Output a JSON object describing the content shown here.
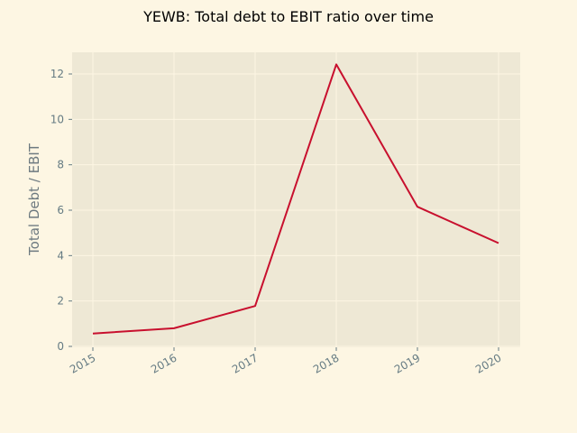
{
  "chart_data": {
    "type": "line",
    "title": "YEWB: Total debt to EBIT ratio over time",
    "xlabel": "",
    "ylabel": "Total Debt / EBIT",
    "x": [
      "2015",
      "2016",
      "2017",
      "2018",
      "2019",
      "2020"
    ],
    "series": [
      {
        "values": [
          0.57,
          0.8,
          1.78,
          12.42,
          6.15,
          4.55
        ]
      }
    ],
    "ylim": [
      0,
      13
    ],
    "yticks": [
      0,
      2,
      4,
      6,
      8,
      10,
      12
    ],
    "grid": true,
    "legend": "none",
    "colors": {
      "background": "#fdf6e3",
      "plot_background": "#eee8d5",
      "line": "#c8102e",
      "grid": "#fdf6e3",
      "tick_label": "#657b83"
    }
  }
}
